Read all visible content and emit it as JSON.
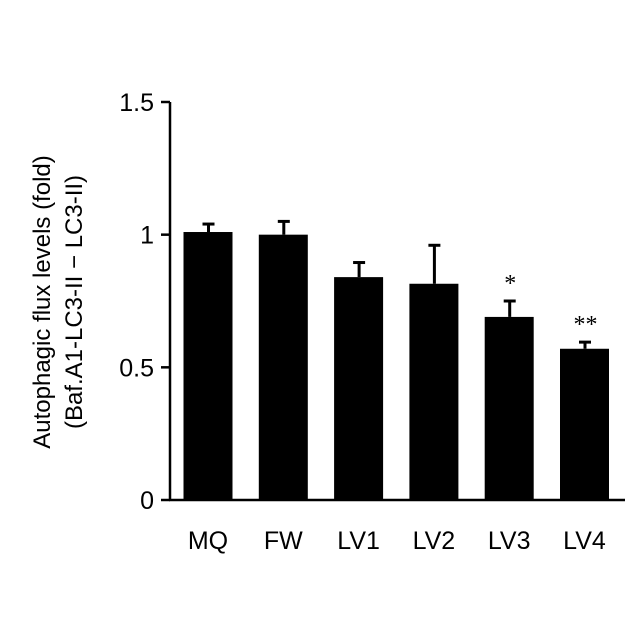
{
  "chart_data": {
    "type": "bar",
    "title": "",
    "xlabel": "",
    "ylabel": "Autophagic flux levels (fold)",
    "ylabel_sub": "(Baf.A1-LC3-II − LC3-II)",
    "ylim": [
      0,
      1.5
    ],
    "yticks": [
      0,
      0.5,
      1,
      1.5
    ],
    "ytick_labels": [
      "0",
      "0.5",
      "1",
      "1.5"
    ],
    "categories": [
      "MQ",
      "FW",
      "LV1",
      "LV2",
      "LV3",
      "LV4"
    ],
    "values": [
      1.01,
      1.0,
      0.84,
      0.815,
      0.69,
      0.57
    ],
    "errors": [
      0.03,
      0.05,
      0.055,
      0.145,
      0.06,
      0.025
    ],
    "significance": [
      "",
      "",
      "",
      "",
      "*",
      "**"
    ],
    "grid": false,
    "bar_color": "#000000"
  }
}
